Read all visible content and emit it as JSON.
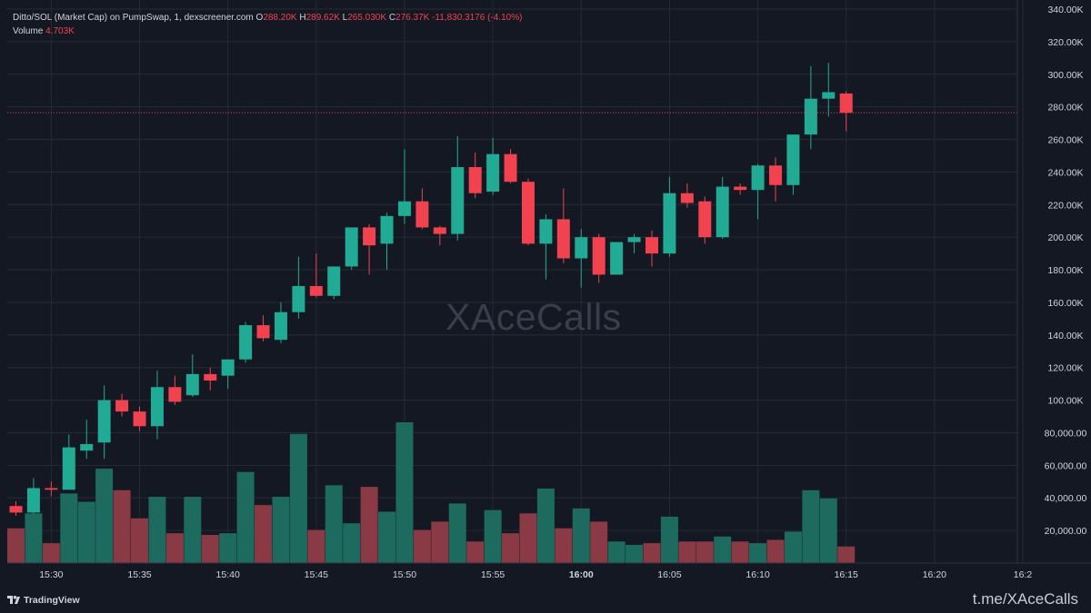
{
  "header": {
    "symbol": "Ditto/SOL (Market Cap) on PumpSwap, 1, dexscreener.com",
    "o_label": "O",
    "o_value": "288.20K",
    "h_label": "H",
    "h_value": "289.62K",
    "l_label": "L",
    "l_value": "265.030K",
    "c_label": "C",
    "c_value": "276.37K",
    "change": "-11,830.3176 (-4.10%)",
    "volume_label": "Volume",
    "volume_value": "4.703K"
  },
  "watermark": "XAceCalls",
  "footer": {
    "brand": "TradingView",
    "telegram": "t.me/XAceCalls"
  },
  "colors": {
    "up": "#22ab94",
    "down": "#f0434f",
    "up_vol": "#1d6b5f",
    "down_vol": "#8a3a44",
    "background": "#141823",
    "grid": "#262a36",
    "last_price_line": "#f0434f"
  },
  "chart_data": {
    "type": "candlestick",
    "price_axis": {
      "min": 0,
      "max": 340000,
      "ticks": [
        20000,
        40000,
        60000,
        80000,
        100000,
        120000,
        140000,
        160000,
        180000,
        200000,
        220000,
        240000,
        260000,
        280000,
        300000,
        320000,
        340000
      ],
      "tick_labels": [
        "20,000.00",
        "40,000.00",
        "60,000.00",
        "80,000.00",
        "100.00K",
        "120.00K",
        "140.00K",
        "160.00K",
        "180.00K",
        "200.00K",
        "220.00K",
        "240.00K",
        "260.00K",
        "280.00K",
        "300.00K",
        "320.00K",
        "340.00K"
      ]
    },
    "time_axis": {
      "ticks": [
        2,
        7,
        12,
        17,
        22,
        27,
        32,
        37,
        42,
        47,
        52,
        57
      ],
      "tick_labels": [
        "15:30",
        "15:35",
        "15:40",
        "15:45",
        "15:50",
        "15:55",
        "16:00",
        "16:05",
        "16:10",
        "16:15",
        "16:20",
        "16:2"
      ],
      "bold_tick": "16:00"
    },
    "last_price": 276370,
    "candles": [
      {
        "t": "15:28",
        "o": 35000,
        "h": 38000,
        "l": 29000,
        "c": 31000
      },
      {
        "t": "15:29",
        "o": 31000,
        "h": 52000,
        "l": 30000,
        "c": 46000
      },
      {
        "t": "15:30",
        "o": 46000,
        "h": 50000,
        "l": 41000,
        "c": 45000
      },
      {
        "t": "15:31",
        "o": 45000,
        "h": 79000,
        "l": 45000,
        "c": 71000
      },
      {
        "t": "15:32",
        "o": 69000,
        "h": 88000,
        "l": 64000,
        "c": 73000
      },
      {
        "t": "15:33",
        "o": 74000,
        "h": 109000,
        "l": 64000,
        "c": 100000
      },
      {
        "t": "15:34",
        "o": 100000,
        "h": 104000,
        "l": 90000,
        "c": 93000
      },
      {
        "t": "15:35",
        "o": 93000,
        "h": 96000,
        "l": 81000,
        "c": 84000
      },
      {
        "t": "15:36",
        "o": 84000,
        "h": 118000,
        "l": 76000,
        "c": 108000
      },
      {
        "t": "15:37",
        "o": 108000,
        "h": 115000,
        "l": 97000,
        "c": 99000
      },
      {
        "t": "15:38",
        "o": 103000,
        "h": 128000,
        "l": 102000,
        "c": 116000
      },
      {
        "t": "15:39",
        "o": 116000,
        "h": 120000,
        "l": 106000,
        "c": 112000
      },
      {
        "t": "15:40",
        "o": 115000,
        "h": 124000,
        "l": 107000,
        "c": 125000
      },
      {
        "t": "15:41",
        "o": 125000,
        "h": 148000,
        "l": 123000,
        "c": 146000
      },
      {
        "t": "15:42",
        "o": 146000,
        "h": 152000,
        "l": 136000,
        "c": 138000
      },
      {
        "t": "15:43",
        "o": 137000,
        "h": 160000,
        "l": 135000,
        "c": 154000
      },
      {
        "t": "15:44",
        "o": 154000,
        "h": 188000,
        "l": 150000,
        "c": 170000
      },
      {
        "t": "15:45",
        "o": 170000,
        "h": 190000,
        "l": 163000,
        "c": 164000
      },
      {
        "t": "15:46",
        "o": 164000,
        "h": 182000,
        "l": 162000,
        "c": 182000
      },
      {
        "t": "15:47",
        "o": 182000,
        "h": 206000,
        "l": 180000,
        "c": 206000
      },
      {
        "t": "15:48",
        "o": 206000,
        "h": 208000,
        "l": 177000,
        "c": 195000
      },
      {
        "t": "15:49",
        "o": 196000,
        "h": 215000,
        "l": 180000,
        "c": 213000
      },
      {
        "t": "15:50",
        "o": 213000,
        "h": 254000,
        "l": 208000,
        "c": 222000
      },
      {
        "t": "15:51",
        "o": 222000,
        "h": 230000,
        "l": 205000,
        "c": 206000
      },
      {
        "t": "15:52",
        "o": 206000,
        "h": 207000,
        "l": 195000,
        "c": 202000
      },
      {
        "t": "15:53",
        "o": 202000,
        "h": 262000,
        "l": 198000,
        "c": 243000
      },
      {
        "t": "15:54",
        "o": 243000,
        "h": 252000,
        "l": 224000,
        "c": 227000
      },
      {
        "t": "15:55",
        "o": 228000,
        "h": 261000,
        "l": 226000,
        "c": 251000
      },
      {
        "t": "15:56",
        "o": 251000,
        "h": 254000,
        "l": 233000,
        "c": 234000
      },
      {
        "t": "15:57",
        "o": 234000,
        "h": 236000,
        "l": 195000,
        "c": 196000
      },
      {
        "t": "15:58",
        "o": 196000,
        "h": 214000,
        "l": 174000,
        "c": 211000
      },
      {
        "t": "15:59",
        "o": 211000,
        "h": 230000,
        "l": 184000,
        "c": 187000
      },
      {
        "t": "16:00",
        "o": 187000,
        "h": 205000,
        "l": 169000,
        "c": 200000
      },
      {
        "t": "16:01",
        "o": 200000,
        "h": 202000,
        "l": 172000,
        "c": 177000
      },
      {
        "t": "16:02",
        "o": 177000,
        "h": 197000,
        "l": 177000,
        "c": 197000
      },
      {
        "t": "16:03",
        "o": 197000,
        "h": 202000,
        "l": 190000,
        "c": 200000
      },
      {
        "t": "16:04",
        "o": 200000,
        "h": 204000,
        "l": 182000,
        "c": 190000
      },
      {
        "t": "16:05",
        "o": 190000,
        "h": 237000,
        "l": 188000,
        "c": 227000
      },
      {
        "t": "16:06",
        "o": 227000,
        "h": 233000,
        "l": 218000,
        "c": 221000
      },
      {
        "t": "16:07",
        "o": 222000,
        "h": 225000,
        "l": 196000,
        "c": 200000
      },
      {
        "t": "16:08",
        "o": 200000,
        "h": 237000,
        "l": 199000,
        "c": 231000
      },
      {
        "t": "16:09",
        "o": 231000,
        "h": 233000,
        "l": 226000,
        "c": 229000
      },
      {
        "t": "16:10",
        "o": 229000,
        "h": 245000,
        "l": 211000,
        "c": 244000
      },
      {
        "t": "16:11",
        "o": 244000,
        "h": 249000,
        "l": 222000,
        "c": 232000
      },
      {
        "t": "16:12",
        "o": 232000,
        "h": 263000,
        "l": 226000,
        "c": 263000
      },
      {
        "t": "16:13",
        "o": 263000,
        "h": 305000,
        "l": 254000,
        "c": 285000
      },
      {
        "t": "16:14",
        "o": 285000,
        "h": 307000,
        "l": 274000,
        "c": 289000
      },
      {
        "t": "16:15",
        "o": 288200,
        "h": 289620,
        "l": 265030,
        "c": 276370
      }
    ],
    "volume": [
      21000,
      30000,
      12000,
      42000,
      37000,
      57000,
      44000,
      27000,
      40000,
      18000,
      40000,
      17000,
      18000,
      55000,
      35000,
      40000,
      78000,
      20000,
      47000,
      24000,
      46000,
      31000,
      85000,
      20000,
      25000,
      36000,
      13000,
      32000,
      18000,
      30000,
      45000,
      21000,
      33000,
      25000,
      13000,
      11000,
      12000,
      28000,
      13000,
      13000,
      16000,
      13000,
      12000,
      14000,
      19000,
      44000,
      39000,
      10000
    ]
  }
}
